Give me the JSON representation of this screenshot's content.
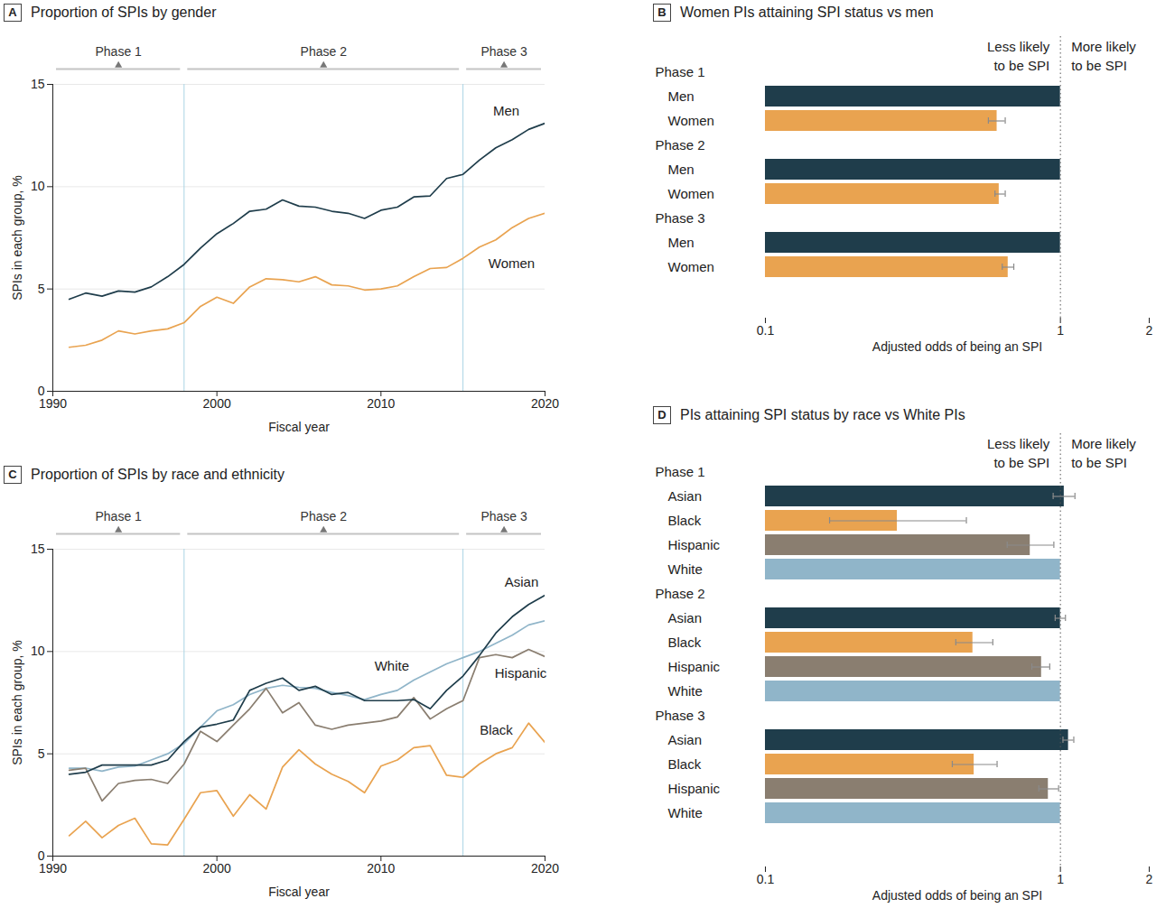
{
  "chart_data": [
    {
      "type": "line",
      "panel": "A",
      "title": "Proportion of SPIs by gender",
      "x": [
        1991,
        1992,
        1993,
        1994,
        1995,
        1996,
        1997,
        1998,
        1999,
        2000,
        2001,
        2002,
        2003,
        2004,
        2005,
        2006,
        2007,
        2008,
        2009,
        2010,
        2011,
        2012,
        2013,
        2014,
        2015,
        2016,
        2017,
        2018,
        2019,
        2020
      ],
      "series": [
        {
          "name": "Men",
          "color": "#1f3d4b",
          "values": [
            4.5,
            4.8,
            4.65,
            4.9,
            4.85,
            5.1,
            5.6,
            6.2,
            7.0,
            7.7,
            8.2,
            8.8,
            8.9,
            9.35,
            9.05,
            9.0,
            8.8,
            8.7,
            8.45,
            8.85,
            9.0,
            9.5,
            9.55,
            10.4,
            10.6,
            11.3,
            11.9,
            12.3,
            12.8,
            13.1
          ]
        },
        {
          "name": "Women",
          "color": "#e9a350",
          "values": [
            2.15,
            2.25,
            2.5,
            2.95,
            2.8,
            2.95,
            3.05,
            3.35,
            4.15,
            4.6,
            4.3,
            5.1,
            5.5,
            5.45,
            5.35,
            5.6,
            5.2,
            5.15,
            4.95,
            5.0,
            5.15,
            5.6,
            6.0,
            6.05,
            6.5,
            7.05,
            7.4,
            8.0,
            8.45,
            8.7
          ]
        }
      ],
      "xlim": [
        1990,
        2020
      ],
      "xticks": [
        1990,
        2000,
        2010,
        2020
      ],
      "ylim": [
        0,
        15
      ],
      "yticks": [
        0,
        5,
        10,
        15
      ],
      "xlabel": "Fiscal year",
      "ylabel": "SPIs in each group, %",
      "grid": true,
      "phases": [
        {
          "label": "Phase 1",
          "start": 1990,
          "end": 1998
        },
        {
          "label": "Phase 2",
          "start": 1998,
          "end": 2015
        },
        {
          "label": "Phase 3",
          "start": 2015,
          "end": 2020
        }
      ]
    },
    {
      "type": "bar",
      "panel": "B",
      "title": "Women PIs attaining SPI status vs men",
      "orientation": "horizontal",
      "log": "x",
      "categories": [
        "Men",
        "Women"
      ],
      "colors": [
        "#1f3d4b",
        "#e9a350"
      ],
      "groups": [
        {
          "name": "Phase 1",
          "values": [
            1,
            0.61
          ],
          "error_low": [
            null,
            0.57
          ],
          "error_high": [
            null,
            0.65
          ]
        },
        {
          "name": "Phase 2",
          "values": [
            1,
            0.62
          ],
          "error_low": [
            null,
            0.6
          ],
          "error_high": [
            null,
            0.65
          ]
        },
        {
          "name": "Phase 3",
          "values": [
            1,
            0.665
          ],
          "error_low": [
            null,
            0.635
          ],
          "error_high": [
            null,
            0.695
          ]
        }
      ],
      "reference": 1,
      "annotations": [
        "Less likely\nto be SPI",
        "More likely\nto be SPI"
      ],
      "xlim": [
        0.1,
        2
      ],
      "xticks": [
        0.1,
        1,
        2
      ],
      "xlabel": "Adjusted odds of being an SPI"
    },
    {
      "type": "line",
      "panel": "C",
      "title": "Proportion of SPIs by race and ethnicity",
      "x": [
        1991,
        1992,
        1993,
        1994,
        1995,
        1996,
        1997,
        1998,
        1999,
        2000,
        2001,
        2002,
        2003,
        2004,
        2005,
        2006,
        2007,
        2008,
        2009,
        2010,
        2011,
        2012,
        2013,
        2014,
        2015,
        2016,
        2017,
        2018,
        2019,
        2020
      ],
      "series": [
        {
          "name": "White",
          "color": "#90b5c9",
          "values": [
            4.3,
            4.3,
            4.15,
            4.35,
            4.4,
            4.7,
            5.0,
            5.5,
            6.3,
            7.1,
            7.4,
            7.9,
            8.2,
            8.35,
            8.25,
            8.2,
            8.0,
            7.85,
            7.65,
            7.9,
            8.1,
            8.6,
            9.0,
            9.4,
            9.7,
            10.0,
            10.4,
            10.8,
            11.3,
            11.5
          ]
        },
        {
          "name": "Hispanic",
          "color": "#8a7e70",
          "values": [
            4.2,
            4.3,
            2.7,
            3.55,
            3.7,
            3.75,
            3.55,
            4.5,
            6.1,
            5.6,
            6.4,
            7.2,
            8.2,
            7.0,
            7.5,
            6.4,
            6.2,
            6.4,
            6.5,
            6.6,
            6.8,
            7.75,
            6.7,
            7.2,
            7.6,
            9.7,
            9.85,
            9.7,
            10.1,
            9.75
          ]
        },
        {
          "name": "Black",
          "color": "#e9a350",
          "values": [
            1.0,
            1.7,
            0.9,
            1.5,
            1.85,
            0.6,
            0.55,
            1.8,
            3.1,
            3.2,
            1.95,
            3.0,
            2.3,
            4.35,
            5.2,
            4.5,
            4.0,
            3.65,
            3.1,
            4.4,
            4.7,
            5.3,
            5.4,
            3.95,
            3.85,
            4.5,
            5.0,
            5.3,
            6.5,
            5.55
          ]
        },
        {
          "name": "Asian",
          "color": "#1f3d4b",
          "values": [
            4.0,
            4.1,
            4.45,
            4.45,
            4.45,
            4.45,
            4.7,
            5.6,
            6.3,
            6.45,
            6.65,
            8.1,
            8.45,
            8.7,
            8.1,
            8.3,
            7.9,
            8.0,
            7.6,
            7.6,
            7.6,
            7.65,
            7.2,
            8.1,
            8.8,
            9.8,
            10.9,
            11.7,
            12.3,
            12.75
          ]
        }
      ],
      "xlim": [
        1990,
        2020
      ],
      "xticks": [
        1990,
        2000,
        2010,
        2020
      ],
      "ylim": [
        0,
        15
      ],
      "yticks": [
        0,
        5,
        10,
        15
      ],
      "xlabel": "Fiscal year",
      "ylabel": "SPIs in each group, %",
      "grid": true,
      "phases": [
        {
          "label": "Phase 1",
          "start": 1990,
          "end": 1998
        },
        {
          "label": "Phase 2",
          "start": 1998,
          "end": 2015
        },
        {
          "label": "Phase 3",
          "start": 2015,
          "end": 2020
        }
      ]
    },
    {
      "type": "bar",
      "panel": "D",
      "title": "PIs attaining SPI status by race vs White PIs",
      "orientation": "horizontal",
      "log": "x",
      "categories": [
        "Asian",
        "Black",
        "Hispanic",
        "White"
      ],
      "colors": [
        "#1f3d4b",
        "#e9a350",
        "#8a7e70",
        "#90b5c9"
      ],
      "groups": [
        {
          "name": "Phase 1",
          "values": [
            1.03,
            0.28,
            0.79,
            1
          ],
          "error_low": [
            0.945,
            0.165,
            0.66,
            null
          ],
          "error_high": [
            1.12,
            0.48,
            0.95,
            null
          ]
        },
        {
          "name": "Phase 2",
          "values": [
            1.0,
            0.505,
            0.863,
            1
          ],
          "error_low": [
            0.96,
            0.442,
            0.8,
            null
          ],
          "error_high": [
            1.04,
            0.59,
            0.92,
            null
          ]
        },
        {
          "name": "Phase 3",
          "values": [
            1.065,
            0.51,
            0.91,
            1
          ],
          "error_low": [
            1.02,
            0.43,
            0.845,
            null
          ],
          "error_high": [
            1.11,
            0.61,
            0.986,
            null
          ]
        }
      ],
      "reference": 1,
      "annotations": [
        "Less likely\nto be SPI",
        "More likely\nto be SPI"
      ],
      "xlim": [
        0.1,
        2
      ],
      "xticks": [
        0.1,
        1,
        2
      ],
      "xlabel": "Adjusted odds of being an SPI"
    }
  ]
}
